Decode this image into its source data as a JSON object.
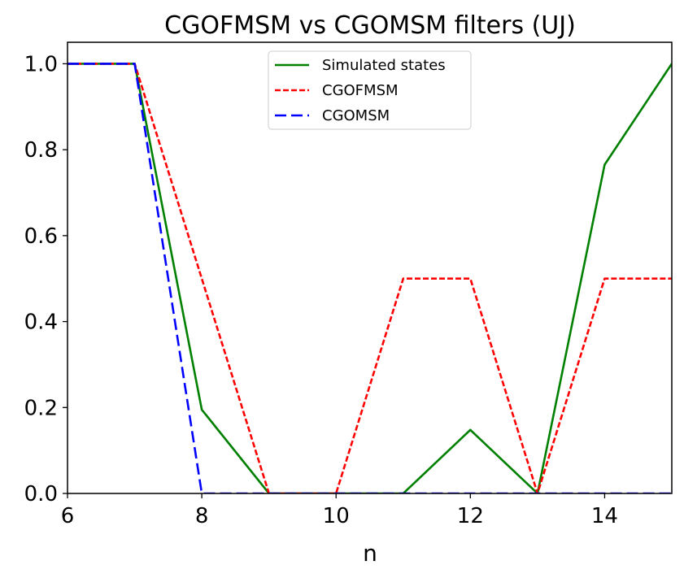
{
  "chart_data": {
    "type": "line",
    "title": "CGOFMSM vs CGOMSM filters (UJ)",
    "xlabel": "n",
    "ylabel": "",
    "xlim": [
      6,
      15
    ],
    "ylim": [
      0,
      1.05
    ],
    "xticks": [
      "6",
      "8",
      "10",
      "12",
      "14"
    ],
    "yticks": [
      "0.0",
      "0.2",
      "0.4",
      "0.6",
      "0.8",
      "1.0"
    ],
    "grid": false,
    "legend_position": "top-center",
    "x": [
      6,
      7,
      8,
      9,
      10,
      11,
      12,
      13,
      14,
      15
    ],
    "series": [
      {
        "name": "Simulated states",
        "color": "#008000",
        "dash": "solid",
        "values": [
          1.0,
          1.0,
          0.195,
          0.0,
          0.0,
          0.0,
          0.148,
          0.0,
          0.765,
          1.0
        ]
      },
      {
        "name": "CGOFMSM",
        "color": "#ff0000",
        "dash": "dotted",
        "values": [
          1.0,
          1.0,
          0.5,
          0.0,
          0.0,
          0.5,
          0.5,
          0.0,
          0.5,
          0.5
        ]
      },
      {
        "name": "CGOMSM",
        "color": "#0000ff",
        "dash": "dashed",
        "values": [
          1.0,
          1.0,
          0.0,
          0.0,
          0.0,
          0.0,
          0.0,
          0.0,
          0.0,
          0.0
        ]
      }
    ]
  }
}
